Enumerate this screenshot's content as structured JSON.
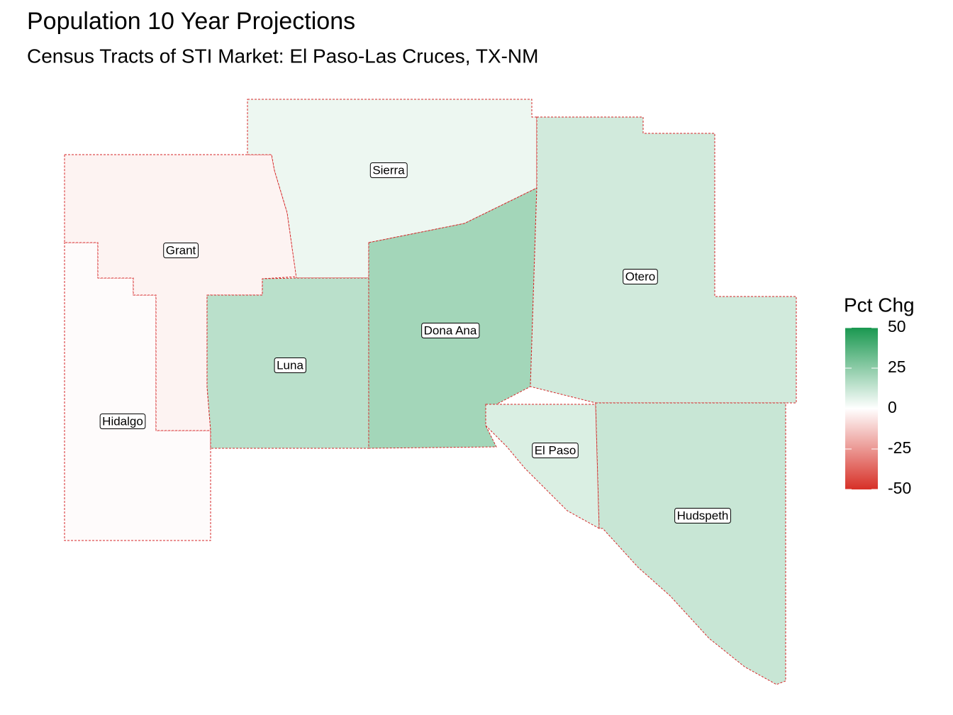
{
  "title": "Population 10 Year Projections",
  "subtitle": "Census Tracts of STI Market: El Paso-Las Cruces, TX-NM",
  "legend": {
    "title": "Pct Chg",
    "limits": [
      -50,
      50
    ],
    "ticks": [
      50,
      25,
      0,
      -25,
      -50
    ],
    "low_color": "#d73027",
    "mid_color": "#ffffff",
    "high_color": "#1a9850"
  },
  "counties": [
    {
      "name": "Hidalgo",
      "pct_chg": -1
    },
    {
      "name": "Grant",
      "pct_chg": -3
    },
    {
      "name": "Sierra",
      "pct_chg": 4
    },
    {
      "name": "Luna",
      "pct_chg": 15
    },
    {
      "name": "Dona Ana",
      "pct_chg": 20
    },
    {
      "name": "Otero",
      "pct_chg": 10
    },
    {
      "name": "El Paso",
      "pct_chg": 8
    },
    {
      "name": "Hudspeth",
      "pct_chg": 12
    }
  ]
}
